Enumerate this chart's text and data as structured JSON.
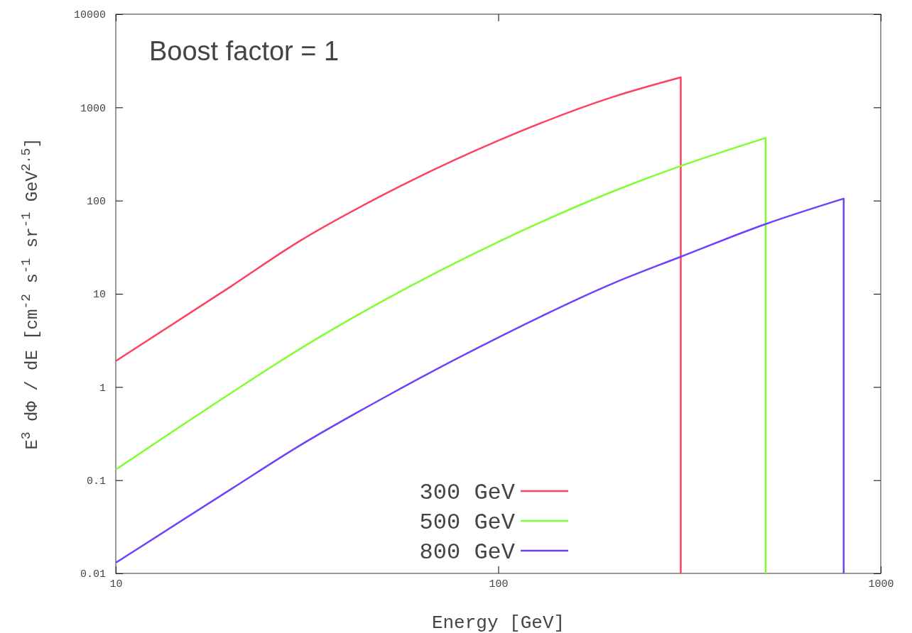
{
  "chart_data": {
    "type": "line",
    "title": "Boost factor = 1",
    "xlabel": "Energy [GeV]",
    "ylabel": "E$^{3}$ dΦ / dE [cm$^{-2}$ s$^{-1}$ sr$^{-1}$ GeV$^{2.5}$]",
    "log": "xy",
    "xlim": [
      10,
      1000
    ],
    "xticks": [
      10,
      100,
      1000
    ],
    "ylim": [
      0.01,
      10000
    ],
    "yticks": [
      0.01,
      0.1,
      1,
      10,
      100,
      1000,
      10000
    ],
    "grid": false,
    "legend": "bottom",
    "line_style": "solid",
    "marker": "none",
    "series": [
      {
        "name": "300 GeV",
        "color": "#ff4060",
        "x": [
          10,
          20,
          30,
          50,
          100,
          200,
          300,
          300
        ],
        "values": [
          1.9,
          12,
          36,
          115,
          440,
          1300,
          2100,
          0.01
        ]
      },
      {
        "name": "500 GeV",
        "color": "#80ff30",
        "x": [
          10,
          20,
          30,
          50,
          100,
          200,
          300,
          500,
          500
        ],
        "values": [
          0.13,
          0.86,
          2.5,
          8.4,
          36,
          126,
          235,
          470,
          0.01
        ]
      },
      {
        "name": "800 GeV",
        "color": "#7040ff",
        "x": [
          10,
          20,
          30,
          50,
          100,
          200,
          300,
          500,
          800,
          800
        ],
        "values": [
          0.013,
          0.08,
          0.23,
          0.76,
          3.4,
          13,
          25,
          56,
          105,
          0.01
        ]
      }
    ]
  }
}
